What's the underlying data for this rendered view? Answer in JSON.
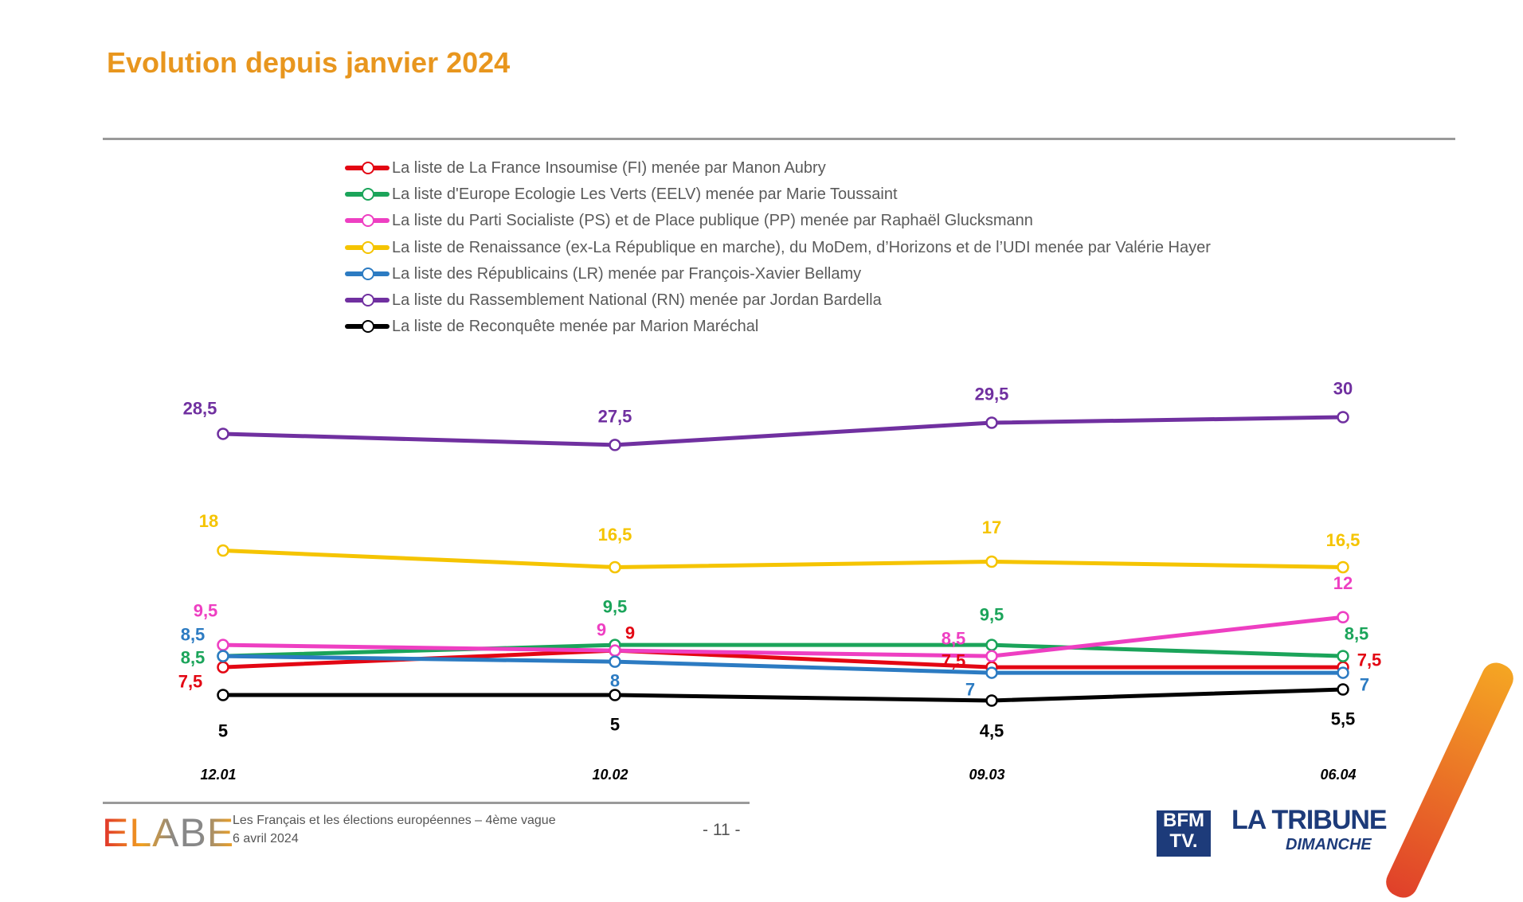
{
  "title": "Evolution depuis janvier 2024",
  "chart_data": {
    "type": "line",
    "title": "Evolution depuis janvier 2024",
    "categories": [
      "12.01",
      "10.02",
      "09.03",
      "06.04"
    ],
    "grid": false,
    "legend_position": "top",
    "series": [
      {
        "name": "La liste de La France Insoumise (FI) menée par Manon Aubry",
        "color": "#E30613",
        "values": [
          7.5,
          9,
          7.5,
          7.5
        ]
      },
      {
        "name": "La liste d'Europe Ecologie Les Verts (EELV) menée par Marie Toussaint",
        "color": "#1BA45A",
        "values": [
          8.5,
          9.5,
          9.5,
          8.5
        ]
      },
      {
        "name": "La liste du Parti Socialiste (PS) et de Place publique (PP) menée par Raphaël Glucksmann",
        "color": "#EE3FC2",
        "values": [
          9.5,
          9,
          8.5,
          12
        ]
      },
      {
        "name": "La liste de Renaissance (ex-La République en marche), du MoDem, d’Horizons et de l’UDI menée par Valérie Hayer",
        "color": "#F5C400",
        "values": [
          18,
          16.5,
          17,
          16.5
        ]
      },
      {
        "name": "La liste des Républicains (LR) menée par François-Xavier Bellamy",
        "color": "#2C7BC2",
        "values": [
          8.5,
          8,
          7,
          7
        ]
      },
      {
        "name": "La liste du Rassemblement National (RN) menée par Jordan Bardella",
        "color": "#7030A0",
        "values": [
          28.5,
          27.5,
          29.5,
          30
        ]
      },
      {
        "name": "La liste de Reconquête menée par Marion Maréchal",
        "color": "#000000",
        "values": [
          5,
          5,
          4.5,
          5.5
        ]
      }
    ]
  },
  "footer": {
    "logo": "ELABE",
    "subtitle": "Les Français et les élections européennes – 4ème vague",
    "date": "6 avril 2024",
    "page": "- 11 -",
    "partner_logo_1": "BFM TV.",
    "partner_logo_2": "LA TRIBUNE",
    "partner_logo_2_sub": "DIMANCHE"
  }
}
